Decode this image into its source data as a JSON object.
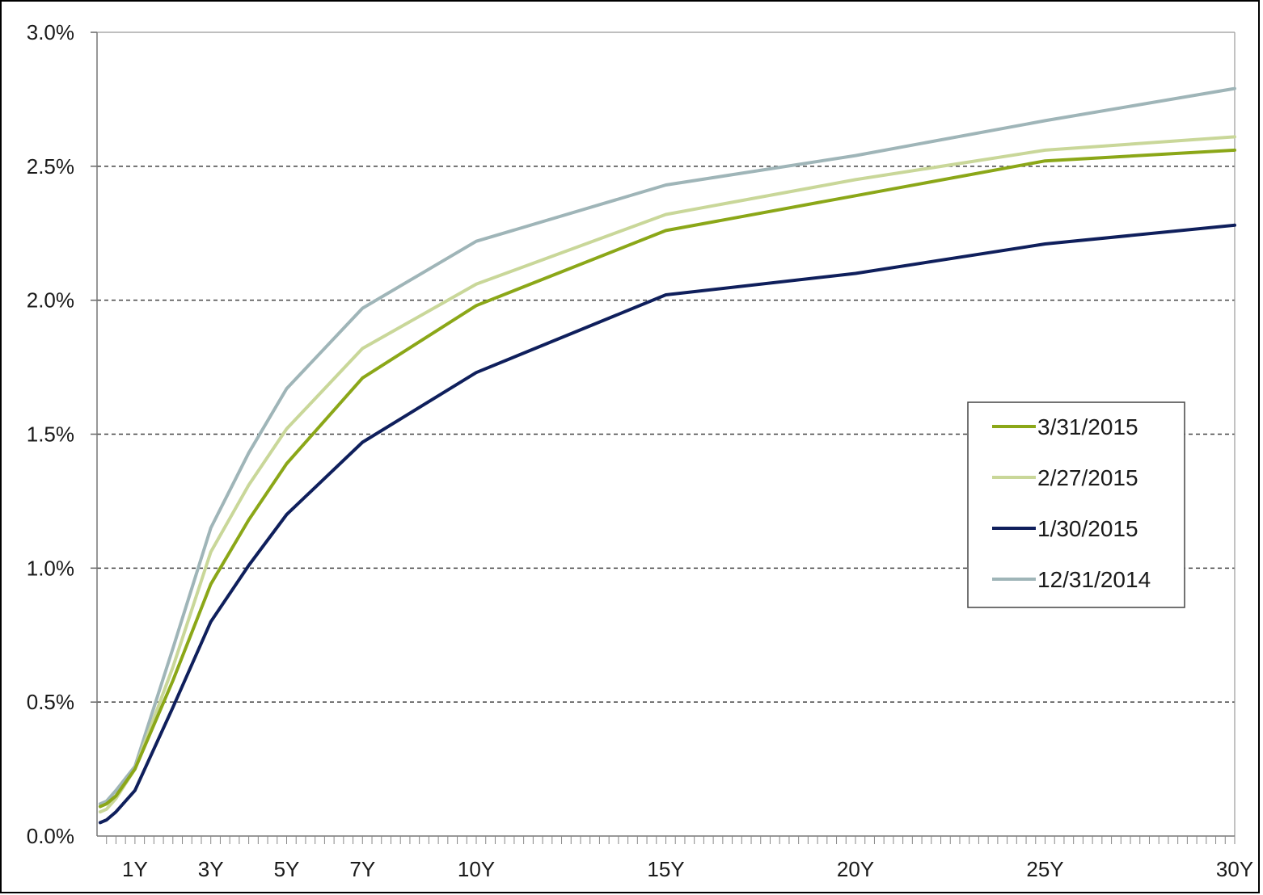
{
  "chart_data": {
    "type": "line",
    "title": "",
    "xlabel": "",
    "ylabel": "",
    "x_unit": "years",
    "xlim": [
      0,
      30
    ],
    "ylim": [
      0,
      3.0
    ],
    "y_ticks": [
      0.0,
      0.5,
      1.0,
      1.5,
      2.0,
      2.5,
      3.0
    ],
    "y_tick_labels": [
      "0.0%",
      "0.5%",
      "1.0%",
      "1.5%",
      "2.0%",
      "2.5%",
      "3.0%"
    ],
    "x_ticks": [
      1,
      3,
      5,
      7,
      10,
      15,
      20,
      25,
      30
    ],
    "x_tick_labels": [
      "1Y",
      "3Y",
      "5Y",
      "7Y",
      "10Y",
      "15Y",
      "20Y",
      "25Y",
      "30Y"
    ],
    "minor_tick_step_years": 0.25,
    "grid": {
      "horizontal": true,
      "style": "dashed"
    },
    "legend_position": "right-center",
    "x": [
      0.083,
      0.25,
      0.5,
      1,
      2,
      3,
      4,
      5,
      7,
      10,
      15,
      20,
      25,
      30
    ],
    "series": [
      {
        "name": "3/31/2015",
        "color": "#8ba718",
        "values": [
          0.11,
          0.12,
          0.15,
          0.25,
          0.58,
          0.94,
          1.18,
          1.39,
          1.71,
          1.98,
          2.26,
          2.39,
          2.52,
          2.56
        ]
      },
      {
        "name": "2/27/2015",
        "color": "#c9d799",
        "values": [
          0.09,
          0.1,
          0.14,
          0.25,
          0.63,
          1.06,
          1.31,
          1.52,
          1.82,
          2.06,
          2.32,
          2.45,
          2.56,
          2.61
        ]
      },
      {
        "name": "1/30/2015",
        "color": "#0f1f5c",
        "values": [
          0.05,
          0.06,
          0.09,
          0.17,
          0.48,
          0.8,
          1.01,
          1.2,
          1.47,
          1.73,
          2.02,
          2.1,
          2.21,
          2.28
        ]
      },
      {
        "name": "12/31/2014",
        "color": "#9fb5b8",
        "values": [
          0.12,
          0.13,
          0.17,
          0.26,
          0.7,
          1.15,
          1.43,
          1.67,
          1.97,
          2.22,
          2.43,
          2.54,
          2.67,
          2.79
        ]
      }
    ]
  }
}
